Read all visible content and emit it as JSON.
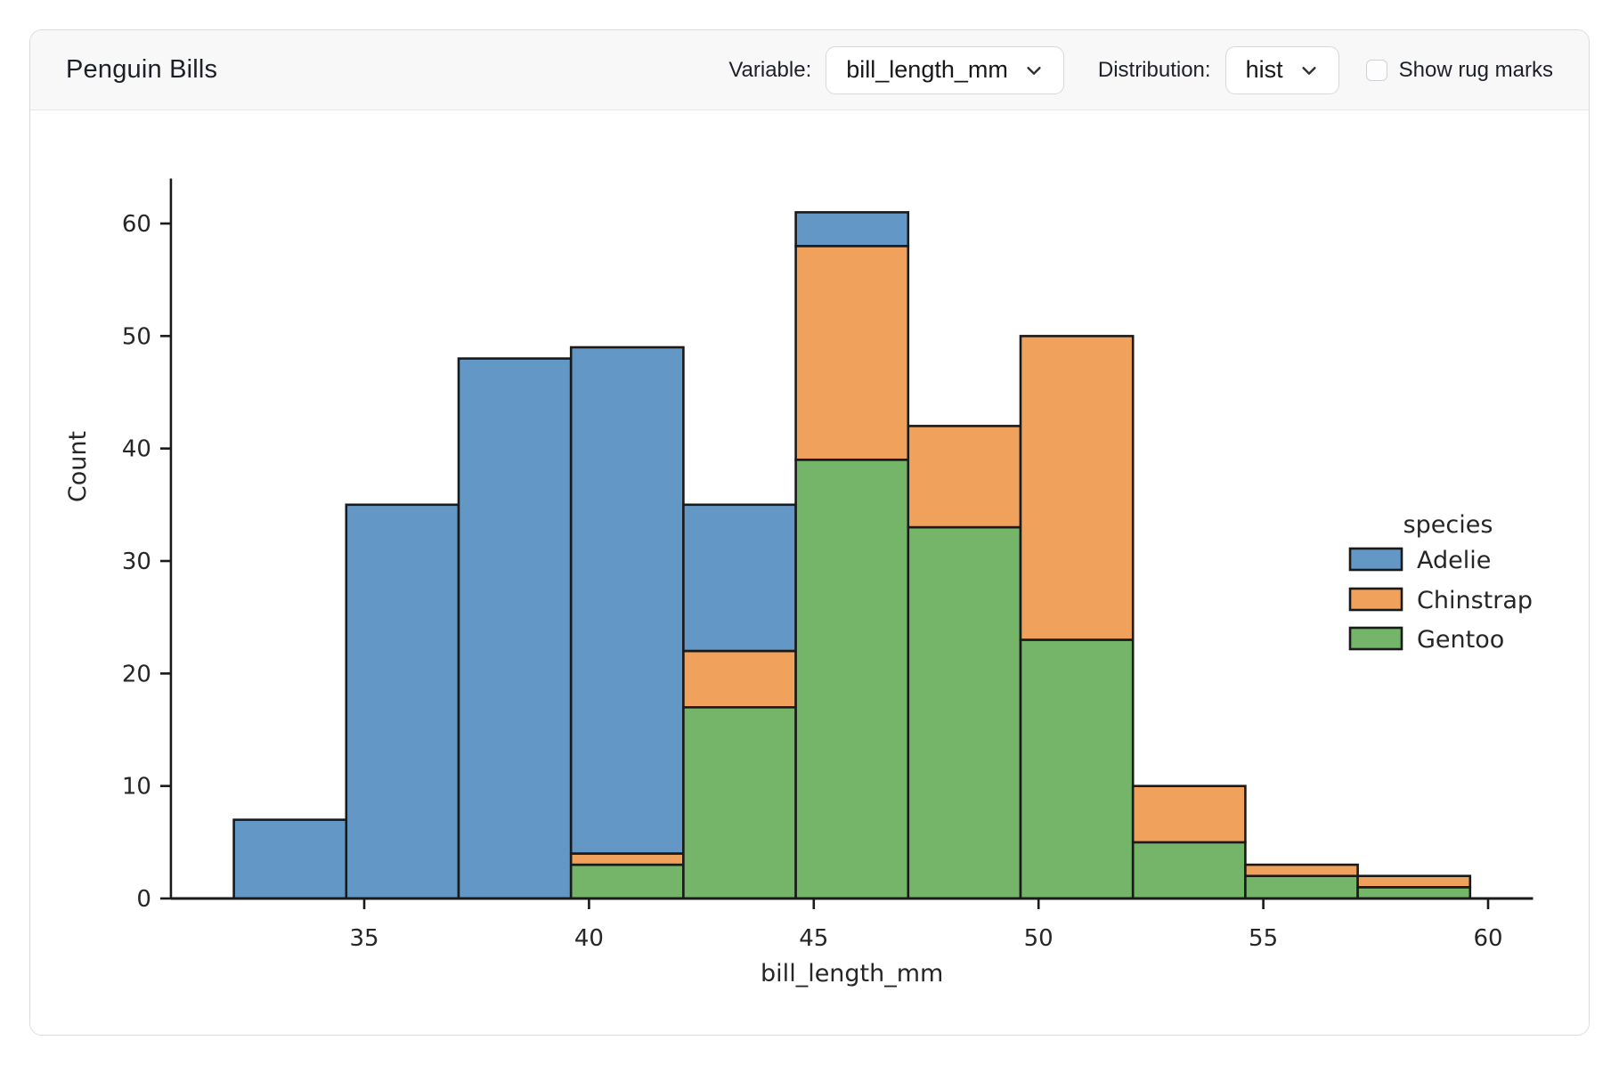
{
  "header": {
    "title": "Penguin Bills",
    "variable_label": "Variable:",
    "variable_value": "bill_length_mm",
    "distribution_label": "Distribution:",
    "distribution_value": "hist",
    "rug_label": "Show rug marks",
    "rug_checked": false
  },
  "chart_data": {
    "type": "bar",
    "subtype": "stacked_histogram",
    "title": "",
    "xlabel": "bill_length_mm",
    "ylabel": "Count",
    "xlim": [
      30.7,
      61.0
    ],
    "ylim": [
      0,
      64
    ],
    "x_ticks": [
      35,
      40,
      45,
      50,
      55,
      60
    ],
    "y_ticks": [
      0,
      10,
      20,
      30,
      40,
      50,
      60
    ],
    "grid": false,
    "bin_edges": [
      32.1,
      34.6,
      37.1,
      39.6,
      42.1,
      44.6,
      47.1,
      49.6,
      52.1,
      54.6,
      57.1,
      59.6
    ],
    "series": [
      {
        "name": "Adelie",
        "color": "#6398c6",
        "values": [
          7,
          35,
          48,
          45,
          13,
          3,
          0,
          0,
          0,
          0,
          0
        ]
      },
      {
        "name": "Chinstrap",
        "color": "#f0a25c",
        "values": [
          0,
          0,
          0,
          1,
          5,
          19,
          9,
          27,
          5,
          1,
          1
        ]
      },
      {
        "name": "Gentoo",
        "color": "#74b56a",
        "values": [
          0,
          0,
          0,
          3,
          17,
          39,
          33,
          23,
          5,
          2,
          1
        ]
      }
    ],
    "bin_totals": [
      7,
      35,
      48,
      49,
      35,
      61,
      42,
      50,
      10,
      3,
      2
    ],
    "stack_order_bottom_to_top": [
      "Gentoo",
      "Chinstrap",
      "Adelie"
    ],
    "edge_color": "#1a1a1a",
    "text_color": "#262626",
    "legend": {
      "title": "species",
      "entries": [
        "Adelie",
        "Chinstrap",
        "Gentoo"
      ],
      "position": "center-right",
      "frame": false
    }
  }
}
